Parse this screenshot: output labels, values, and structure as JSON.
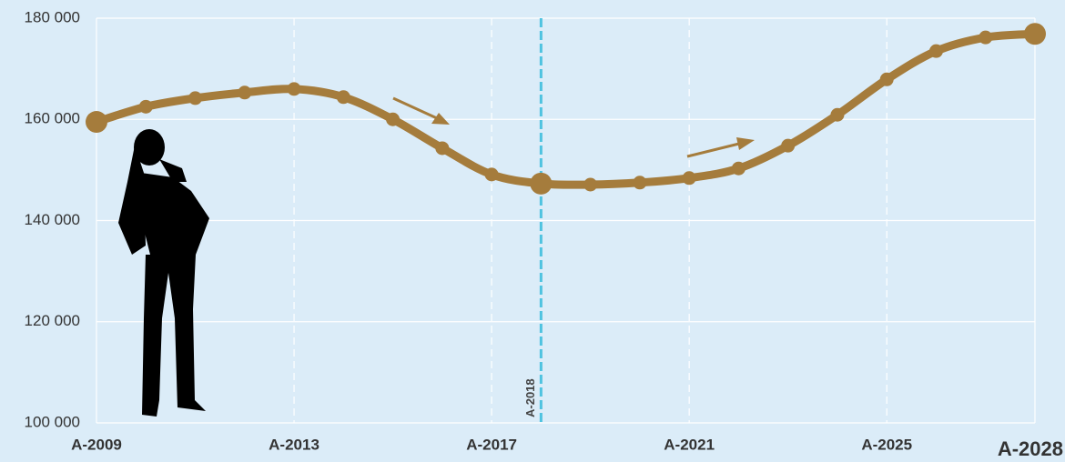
{
  "chart_data": {
    "type": "line",
    "x": [
      2009,
      2010,
      2011,
      2012,
      2013,
      2014,
      2015,
      2016,
      2017,
      2018,
      2019,
      2020,
      2021,
      2022,
      2023,
      2024,
      2025,
      2026,
      2027,
      2028
    ],
    "series": [
      {
        "color": "#a57c3c",
        "values": [
          159500,
          162500,
          164200,
          165300,
          166000,
          164400,
          160000,
          154300,
          149100,
          147300,
          147100,
          147500,
          148400,
          150300,
          154800,
          160900,
          167900,
          173500,
          176200,
          176900
        ]
      }
    ],
    "xlim": [
      2009,
      2028
    ],
    "xticks": [
      {
        "value": 2009,
        "label": "A-2009"
      },
      {
        "value": 2013,
        "label": "A-2013"
      },
      {
        "value": 2017,
        "label": "A-2017"
      },
      {
        "value": 2021,
        "label": "A-2021"
      },
      {
        "value": 2025,
        "label": "A-2025"
      },
      {
        "value": 2028,
        "label": "A-2028"
      }
    ],
    "ylim": [
      100000,
      180000
    ],
    "yticks": [
      {
        "value": 100000,
        "label": "100 000"
      },
      {
        "value": 120000,
        "label": "120 000"
      },
      {
        "value": 140000,
        "label": "140 000"
      },
      {
        "value": 160000,
        "label": "160 000"
      },
      {
        "value": 180000,
        "label": "180 000"
      }
    ],
    "reference_line": {
      "x": 2018,
      "label": "A-2018",
      "color": "#4fc3e0"
    },
    "highlight_x": [
      2009,
      2018,
      2028
    ],
    "grid": true
  }
}
